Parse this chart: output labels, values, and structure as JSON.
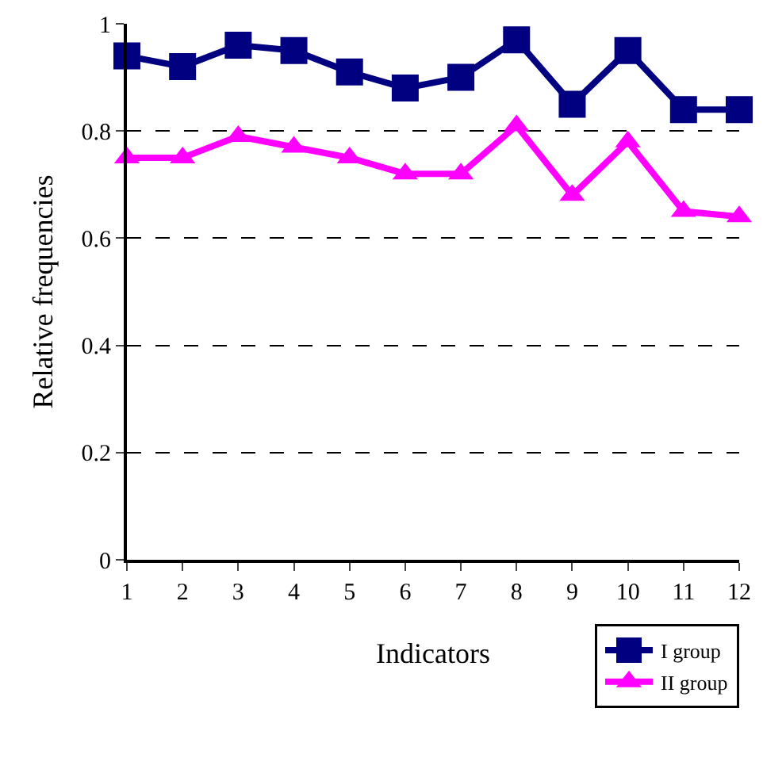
{
  "chart_data": {
    "type": "line",
    "xlabel": "Indicators",
    "ylabel": "Relative frequencies",
    "x": [
      1,
      2,
      3,
      4,
      5,
      6,
      7,
      8,
      9,
      10,
      11,
      12
    ],
    "series": [
      {
        "name": "I group",
        "color": "#000080",
        "marker": "square",
        "values": [
          0.94,
          0.92,
          0.96,
          0.95,
          0.91,
          0.88,
          0.9,
          0.97,
          0.85,
          0.95,
          0.84,
          0.84
        ]
      },
      {
        "name": "II group",
        "color": "#ff00ff",
        "marker": "triangle",
        "values": [
          0.75,
          0.75,
          0.79,
          0.77,
          0.75,
          0.72,
          0.72,
          0.81,
          0.68,
          0.78,
          0.65,
          0.64
        ]
      }
    ],
    "xlim": [
      1,
      12
    ],
    "xticks": [
      1,
      2,
      3,
      4,
      5,
      6,
      7,
      8,
      9,
      10,
      11,
      12
    ],
    "ylim": [
      0,
      1
    ],
    "yticks": [
      0,
      0.2,
      0.4,
      0.6,
      0.8,
      1
    ],
    "grid": "y",
    "legend": "bottom right",
    "line_style": "solid"
  }
}
